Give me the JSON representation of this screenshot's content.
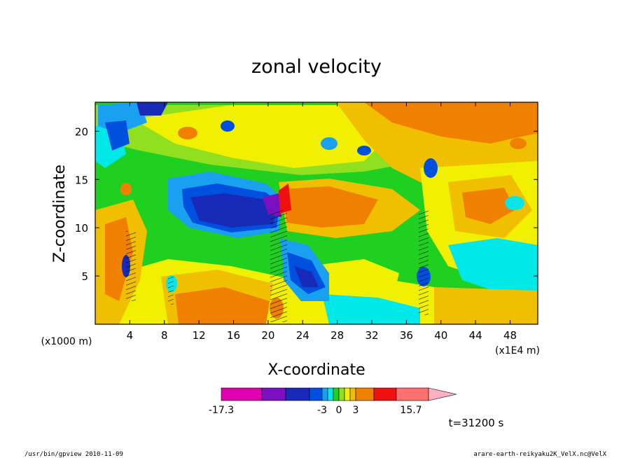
{
  "chart_data": {
    "type": "heatmap",
    "title": "zonal velocity",
    "xlabel": "X-coordinate",
    "ylabel": "Z-coordinate",
    "x_unit_left": "(x1000 m)",
    "x_unit_right": "(x1E4 m)",
    "xlim": [
      0,
      51.2
    ],
    "ylim": [
      0,
      23
    ],
    "xticks": [
      4,
      8,
      12,
      16,
      20,
      24,
      28,
      32,
      36,
      40,
      44,
      48
    ],
    "xtick_labels": [
      "4",
      "8",
      "12",
      "16",
      "20",
      "24",
      "28",
      "32",
      "36",
      "40",
      "44",
      "48"
    ],
    "yticks": [
      5,
      10,
      15,
      20
    ],
    "ytick_labels": [
      "5",
      "10",
      "15",
      "20"
    ],
    "colorbar": {
      "labels": [
        {
          "value": -17.3,
          "text": "-17.3"
        },
        {
          "value": -3,
          "text": "-3"
        },
        {
          "value": 0,
          "text": "0"
        },
        {
          "value": 3,
          "text": "3"
        },
        {
          "value": 15.7,
          "text": "15.7"
        }
      ],
      "bins": [
        {
          "from": -17.3,
          "to": -13.0,
          "color": "#e000b0"
        },
        {
          "from": -13.0,
          "to": -9.5,
          "color": "#7a10c0"
        },
        {
          "from": -9.5,
          "to": -5.5,
          "color": "#1a2ab8"
        },
        {
          "from": -5.5,
          "to": -3.0,
          "color": "#0050e0"
        },
        {
          "from": -3.0,
          "to": -2.0,
          "color": "#1aa0f0"
        },
        {
          "from": -2.0,
          "to": -1.0,
          "color": "#00e8e8"
        },
        {
          "from": -1.0,
          "to": 0.0,
          "color": "#20d020"
        },
        {
          "from": 0.0,
          "to": 1.0,
          "color": "#90e020"
        },
        {
          "from": 1.0,
          "to": 2.0,
          "color": "#f0f000"
        },
        {
          "from": 2.0,
          "to": 3.0,
          "color": "#f0c000"
        },
        {
          "from": 3.0,
          "to": 5.5,
          "color": "#f08000"
        },
        {
          "from": 5.5,
          "to": 9.5,
          "color": "#f01010"
        },
        {
          "from": 9.5,
          "to": 13.0,
          "color": "#ff7070"
        },
        {
          "from": 13.0,
          "to": 15.7,
          "color": "#ffb0c0"
        }
      ]
    },
    "field_features": [
      {
        "x": 17,
        "z": 11.7,
        "value": -8
      },
      {
        "x": 21,
        "z": 12.5,
        "value": -12
      },
      {
        "x": 21.8,
        "z": 13,
        "value": 11
      },
      {
        "x": 25,
        "z": 11.5,
        "value": 5
      },
      {
        "x": 26,
        "z": 3.5,
        "value": -7
      },
      {
        "x": 40,
        "z": 23,
        "value": 5
      },
      {
        "x": 44,
        "z": 5,
        "value": -2
      },
      {
        "x": 5,
        "z": 20,
        "value": 3
      },
      {
        "x": 3,
        "z": 21,
        "value": -6
      },
      {
        "x": 32,
        "z": 5,
        "value": 1.5
      },
      {
        "x": 6,
        "z": 2,
        "value": 4
      },
      {
        "x": 12,
        "z": 6,
        "value": 4
      }
    ]
  },
  "time_label": "t=31200 s",
  "footer": {
    "program": "/usr/bin/gpview   2010-11-09",
    "source": "arare-earth-reikyaku2K_VelX.nc@VelX"
  }
}
